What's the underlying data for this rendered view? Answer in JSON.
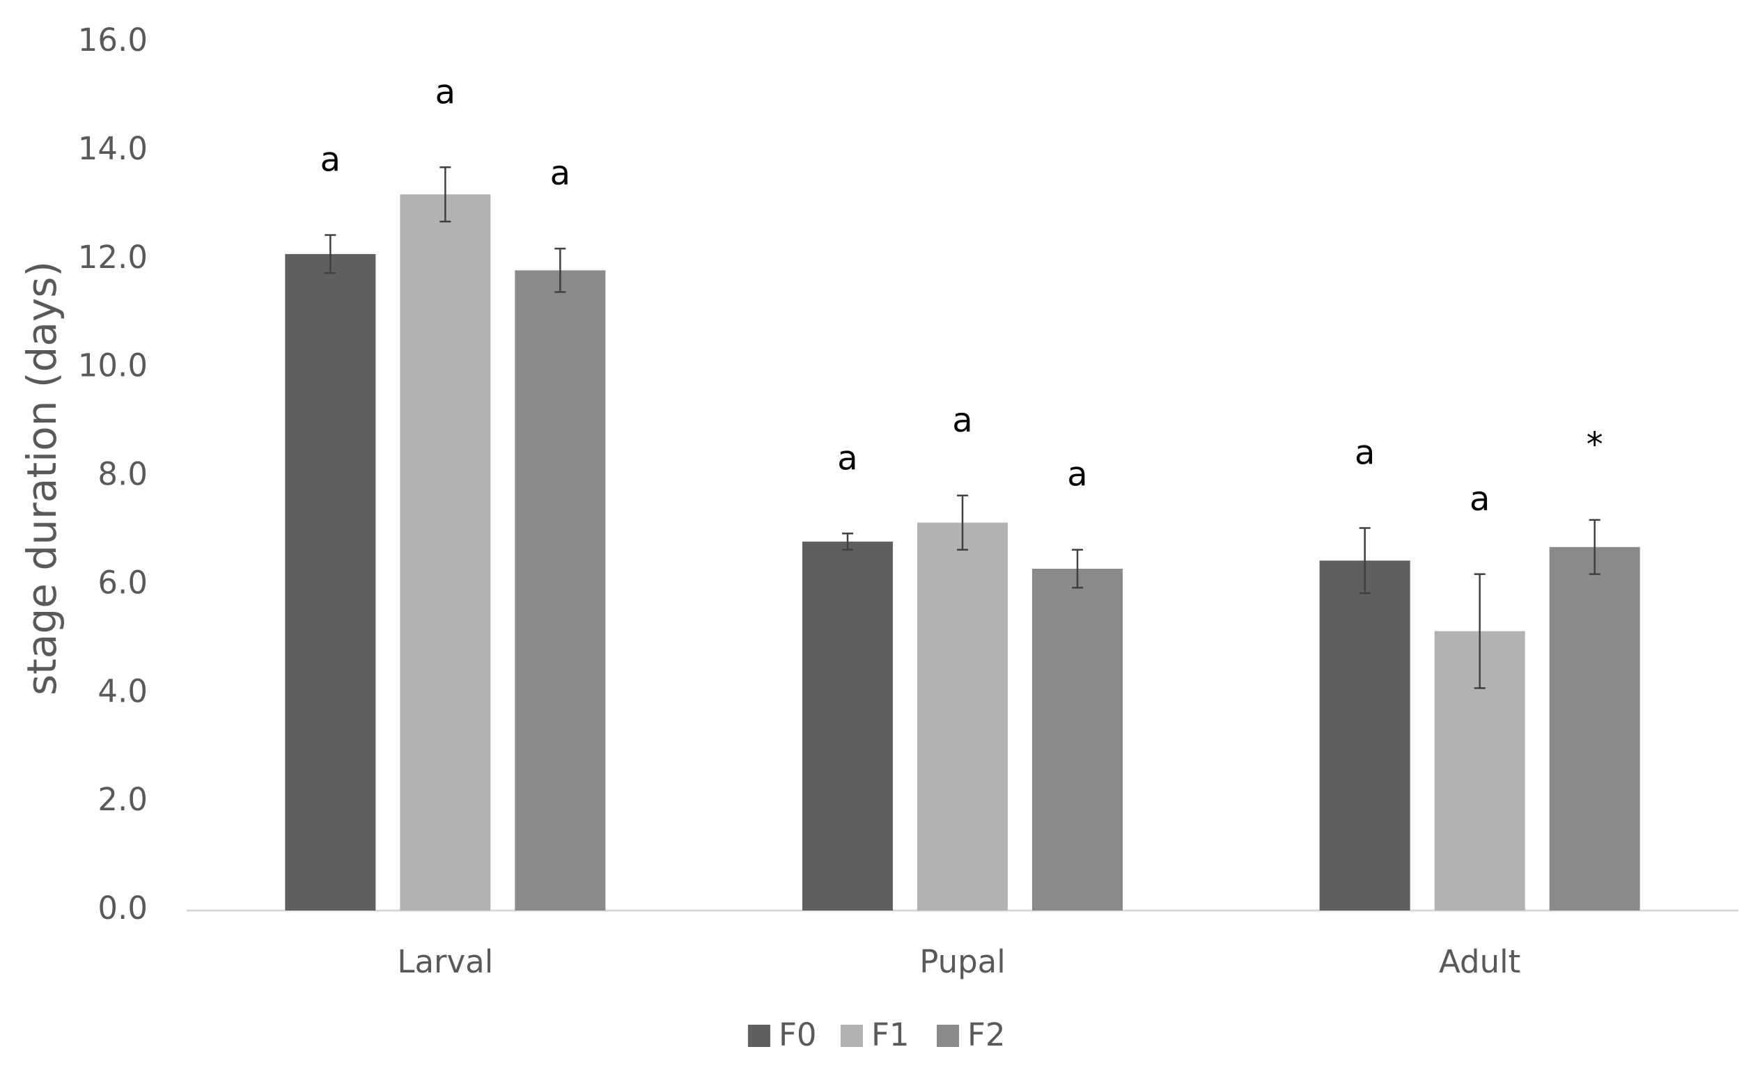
{
  "chart_data": {
    "type": "bar",
    "y_label": "stage duration (days)",
    "categories": [
      "Larval",
      "Pupal",
      "Adult"
    ],
    "series": [
      {
        "name": "F0",
        "color": "#5f5f5f",
        "values": [
          12.1,
          6.8,
          6.45
        ],
        "errors": [
          0.35,
          0.15,
          0.6
        ],
        "significance": [
          "a",
          "a",
          "a"
        ]
      },
      {
        "name": "F1",
        "color": "#b2b2b2",
        "values": [
          13.2,
          7.15,
          5.15
        ],
        "errors": [
          0.5,
          0.5,
          1.05
        ],
        "significance": [
          "a",
          "a",
          "a"
        ]
      },
      {
        "name": "F2",
        "color": "#8a8a8a",
        "values": [
          11.8,
          6.3,
          6.7
        ],
        "errors": [
          0.4,
          0.35,
          0.5
        ],
        "significance": [
          "a",
          "a",
          "*"
        ]
      }
    ],
    "ylim": [
      0,
      16
    ],
    "yticks": [
      {
        "value": 0,
        "label": "0.0"
      },
      {
        "value": 2,
        "label": "2.0"
      },
      {
        "value": 4,
        "label": "4.0"
      },
      {
        "value": 6,
        "label": "6.0"
      },
      {
        "value": 8,
        "label": "8.0"
      },
      {
        "value": 10,
        "label": "10.0"
      },
      {
        "value": 12,
        "label": "12.0"
      },
      {
        "value": 14,
        "label": "14.0"
      },
      {
        "value": 16,
        "label": "16.0"
      }
    ],
    "grid": false,
    "legend": "bottom"
  }
}
